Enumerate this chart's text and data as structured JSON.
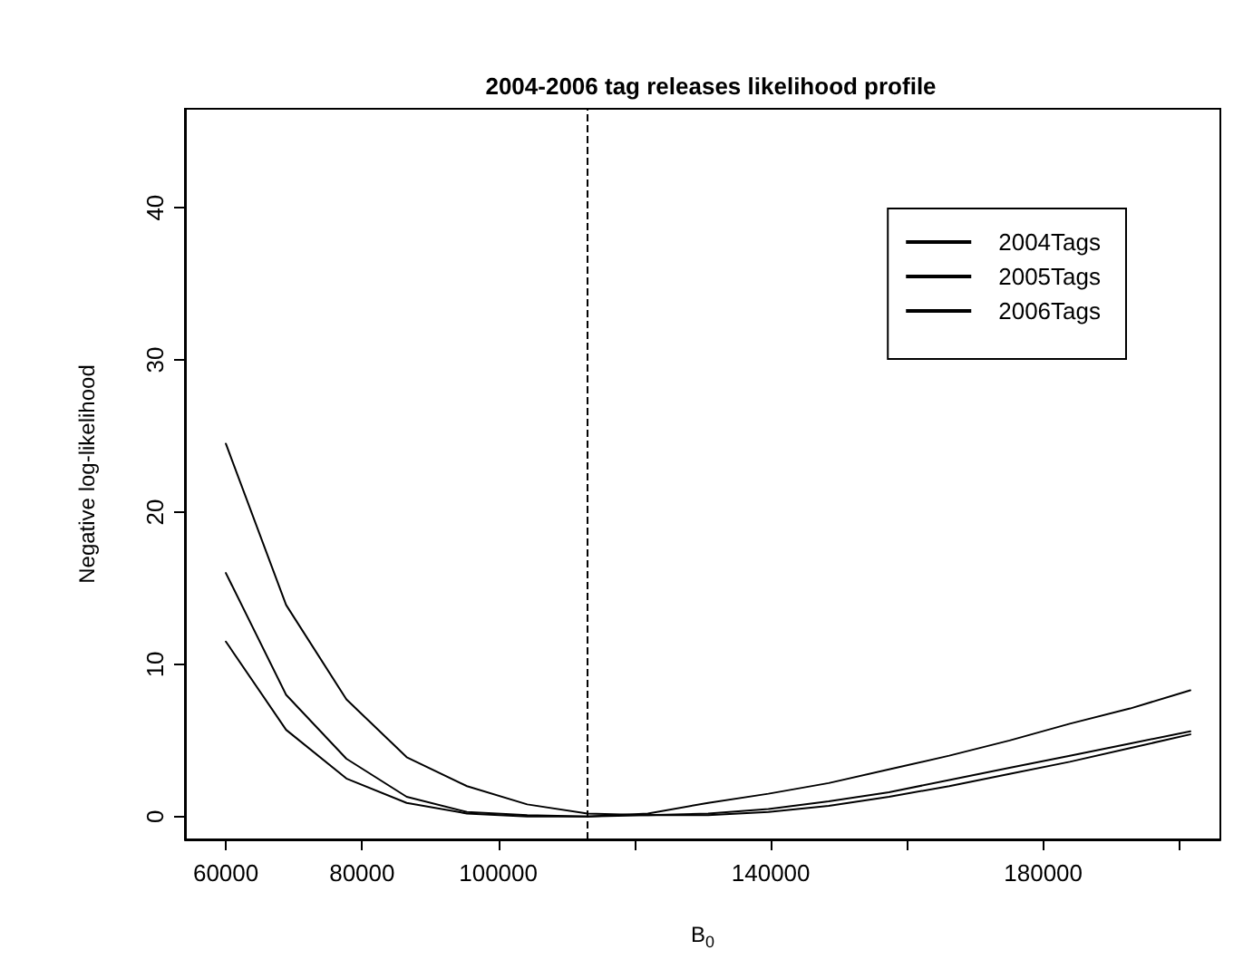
{
  "chart_data": {
    "type": "line",
    "title": "2004-2006 tag releases likelihood profile",
    "xlabel": "B$_{0}$",
    "ylabel": "Negative log-likelihood",
    "x": [
      60000,
      68850,
      77700,
      86550,
      95400,
      104250,
      113100,
      121950,
      130800,
      139650,
      148500,
      157350,
      166200,
      175050,
      183900,
      192750,
      201600
    ],
    "series": [
      {
        "name": "2004Tags",
        "color": "#000000",
        "values": [
          24.5,
          13.9,
          7.7,
          3.9,
          2.0,
          0.8,
          0.2,
          0.1,
          0.1,
          0.3,
          0.7,
          1.3,
          2.0,
          2.8,
          3.6,
          4.5,
          5.4
        ]
      },
      {
        "name": "2005Tags",
        "color": "#000000",
        "values": [
          16.0,
          8.0,
          3.8,
          1.3,
          0.3,
          0.1,
          0.0,
          0.2,
          0.9,
          1.5,
          2.2,
          3.1,
          4.0,
          5.0,
          6.1,
          7.1,
          8.3
        ]
      },
      {
        "name": "2006Tags",
        "color": "#000000",
        "values": [
          11.5,
          5.7,
          2.5,
          0.9,
          0.2,
          0.0,
          0.0,
          0.1,
          0.2,
          0.5,
          1.0,
          1.6,
          2.4,
          3.2,
          4.0,
          4.8,
          5.6
        ]
      }
    ],
    "xlim": [
      54000,
      206000
    ],
    "xticks": [
      60000,
      80000,
      100000,
      {
        "value": 120000,
        "label": null
      },
      140000,
      {
        "value": 160000,
        "label": null
      },
      180000,
      {
        "value": 200000,
        "label": null
      }
    ],
    "ylim": [
      -1.5,
      46.5
    ],
    "yticks": [
      0,
      10,
      20,
      30,
      40
    ],
    "ref_lines": [
      {
        "axis": "x",
        "value": 113100,
        "color": "#000000",
        "line_style": "dashed"
      }
    ],
    "grid": false,
    "legend": "top right",
    "marker": "none",
    "line_style": "solid"
  }
}
